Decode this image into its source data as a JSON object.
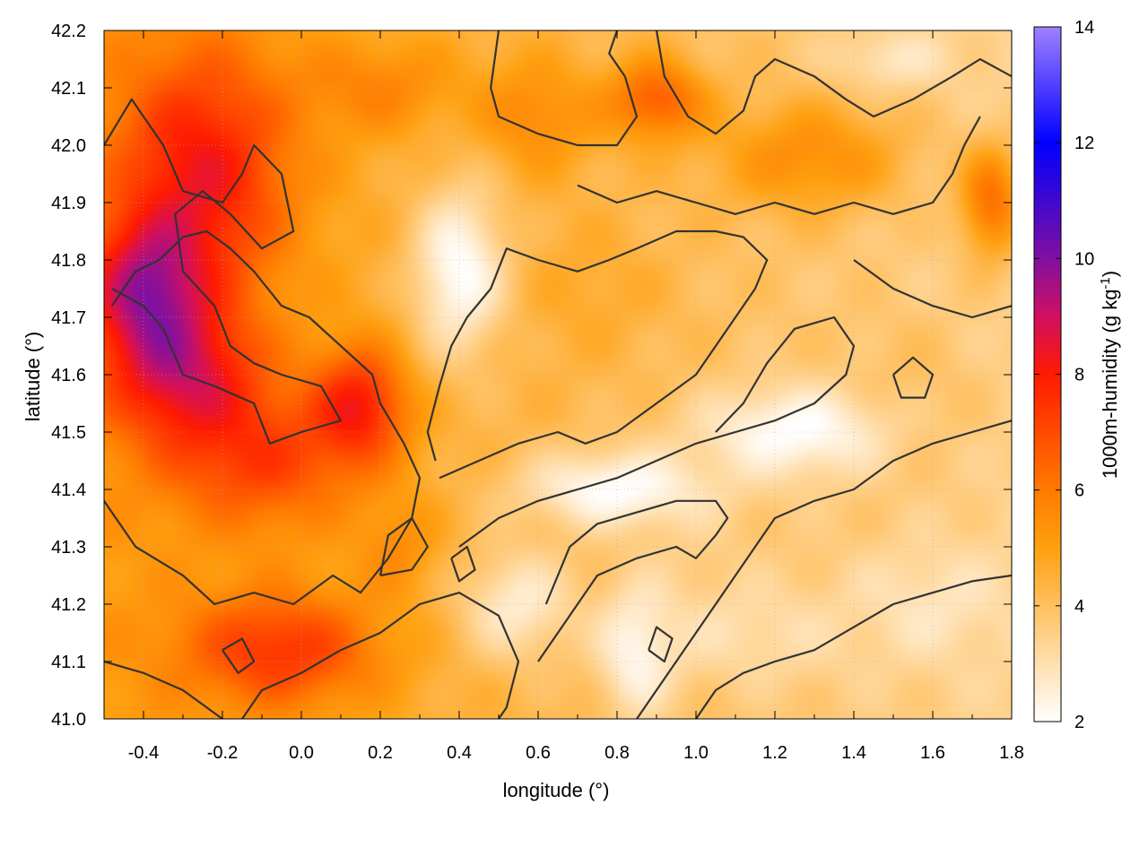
{
  "chart_data": {
    "type": "heatmap",
    "xlabel": "longitude (°)",
    "ylabel": "latitude (°)",
    "colorbar_label_main": "1000m-humidity (g kg",
    "colorbar_label_sup": "-1",
    "colorbar_label_end": ")",
    "xlim": [
      -0.5,
      1.8
    ],
    "ylim": [
      41.0,
      42.2
    ],
    "clim": [
      2,
      14
    ],
    "xticks": [
      -0.4,
      -0.2,
      0.0,
      0.2,
      0.4,
      0.6,
      0.8,
      1.0,
      1.2,
      1.4,
      1.6,
      1.8
    ],
    "xtick_labels": [
      "-0.4",
      "-0.2",
      "0.0",
      "0.2",
      "0.4",
      "0.6",
      "0.8",
      "1.0",
      "1.2",
      "1.4",
      "1.6",
      "1.8"
    ],
    "yticks": [
      41.0,
      41.1,
      41.2,
      41.3,
      41.4,
      41.5,
      41.6,
      41.7,
      41.8,
      41.9,
      42.0,
      42.1,
      42.2
    ],
    "ytick_labels": [
      "41.0",
      "41.1",
      "41.2",
      "41.3",
      "41.4",
      "41.5",
      "41.6",
      "41.7",
      "41.8",
      "41.9",
      "42.0",
      "42.1",
      "42.2"
    ],
    "cticks": [
      2,
      4,
      6,
      8,
      10,
      12,
      14
    ],
    "ctick_labels": [
      "2",
      "4",
      "6",
      "8",
      "10",
      "12",
      "14"
    ],
    "colormap": [
      {
        "value": 2,
        "color": "#ffffff"
      },
      {
        "value": 4,
        "color": "#ffc060"
      },
      {
        "value": 5,
        "color": "#ffa010"
      },
      {
        "value": 6,
        "color": "#ff7a00"
      },
      {
        "value": 8,
        "color": "#ff1a00"
      },
      {
        "value": 9,
        "color": "#d01060"
      },
      {
        "value": 10,
        "color": "#8010a0"
      },
      {
        "value": 12,
        "color": "#0000ff"
      },
      {
        "value": 14,
        "color": "#a080ff"
      }
    ],
    "grid": true,
    "contour_color": "#333333",
    "humidity_blobs": [
      {
        "lon": -0.25,
        "lat": 41.95,
        "value": 7.6,
        "sx": 0.22,
        "sy": 0.22
      },
      {
        "lon": -0.4,
        "lat": 41.75,
        "value": 7.8,
        "sx": 0.15,
        "sy": 0.12
      },
      {
        "lon": -0.3,
        "lat": 41.6,
        "value": 7.6,
        "sx": 0.2,
        "sy": 0.12
      },
      {
        "lon": 0.15,
        "lat": 41.55,
        "value": 7.4,
        "sx": 0.12,
        "sy": 0.1
      },
      {
        "lon": -0.1,
        "lat": 41.45,
        "value": 6.6,
        "sx": 0.25,
        "sy": 0.12
      },
      {
        "lon": -0.05,
        "lat": 41.12,
        "value": 7.0,
        "sx": 0.25,
        "sy": 0.1
      },
      {
        "lon": 0.9,
        "lat": 42.08,
        "value": 6.8,
        "sx": 0.12,
        "sy": 0.07
      },
      {
        "lon": 1.3,
        "lat": 41.98,
        "value": 6.0,
        "sx": 0.25,
        "sy": 0.1
      },
      {
        "lon": 1.75,
        "lat": 41.9,
        "value": 7.0,
        "sx": 0.08,
        "sy": 0.1
      },
      {
        "lon": 0.6,
        "lat": 42.05,
        "value": 5.6,
        "sx": 0.15,
        "sy": 0.1
      },
      {
        "lon": 0.75,
        "lat": 41.75,
        "value": 4.8,
        "sx": 0.2,
        "sy": 0.12
      },
      {
        "lon": 1.55,
        "lat": 41.55,
        "value": 4.8,
        "sx": 0.2,
        "sy": 0.15
      },
      {
        "lon": 1.0,
        "lat": 41.3,
        "value": 4.0,
        "sx": 0.15,
        "sy": 0.08
      },
      {
        "lon": 0.25,
        "lat": 41.3,
        "value": 5.2,
        "sx": 0.1,
        "sy": 0.08
      },
      {
        "lon": 1.1,
        "lat": 41.15,
        "value": 3.4,
        "sx": 0.3,
        "sy": 0.1
      },
      {
        "lon": 0.2,
        "lat": 42.1,
        "value": 5.4,
        "sx": 0.2,
        "sy": 0.08
      }
    ],
    "dry_blobs": [
      {
        "lon": 0.4,
        "lat": 41.78,
        "value": 2.0,
        "sx": 0.12,
        "sy": 0.15
      },
      {
        "lon": 1.25,
        "lat": 41.5,
        "value": 2.0,
        "sx": 0.25,
        "sy": 0.08
      },
      {
        "lon": 0.8,
        "lat": 41.4,
        "value": 2.0,
        "sx": 0.25,
        "sy": 0.07
      },
      {
        "lon": 0.85,
        "lat": 41.12,
        "value": 2.2,
        "sx": 0.1,
        "sy": 0.12
      },
      {
        "lon": 0.55,
        "lat": 41.2,
        "value": 2.6,
        "sx": 0.15,
        "sy": 0.1
      },
      {
        "lon": 1.6,
        "lat": 41.2,
        "value": 2.8,
        "sx": 0.2,
        "sy": 0.1
      },
      {
        "lon": 1.5,
        "lat": 42.15,
        "value": 2.8,
        "sx": 0.15,
        "sy": 0.05
      }
    ],
    "contours": [
      [
        [
          -0.5,
          42.0
        ],
        [
          -0.43,
          42.08
        ],
        [
          -0.35,
          42.0
        ],
        [
          -0.3,
          41.92
        ],
        [
          -0.2,
          41.9
        ],
        [
          -0.15,
          41.95
        ],
        [
          -0.12,
          42.0
        ],
        [
          -0.05,
          41.95
        ],
        [
          -0.02,
          41.85
        ],
        [
          -0.1,
          41.82
        ],
        [
          -0.18,
          41.88
        ],
        [
          -0.25,
          41.92
        ],
        [
          -0.32,
          41.88
        ],
        [
          -0.3,
          41.78
        ],
        [
          -0.22,
          41.72
        ],
        [
          -0.18,
          41.65
        ],
        [
          -0.12,
          41.62
        ],
        [
          -0.05,
          41.6
        ],
        [
          0.05,
          41.58
        ],
        [
          0.1,
          41.52
        ],
        [
          0.0,
          41.5
        ],
        [
          -0.08,
          41.48
        ],
        [
          -0.12,
          41.55
        ],
        [
          -0.22,
          41.58
        ],
        [
          -0.3,
          41.6
        ],
        [
          -0.35,
          41.68
        ],
        [
          -0.4,
          41.72
        ],
        [
          -0.48,
          41.75
        ]
      ],
      [
        [
          -0.5,
          41.38
        ],
        [
          -0.42,
          41.3
        ],
        [
          -0.3,
          41.25
        ],
        [
          -0.22,
          41.2
        ],
        [
          -0.12,
          41.22
        ],
        [
          -0.02,
          41.2
        ],
        [
          0.08,
          41.25
        ],
        [
          0.15,
          41.22
        ],
        [
          0.22,
          41.28
        ],
        [
          0.28,
          41.35
        ],
        [
          0.3,
          41.42
        ],
        [
          0.26,
          41.48
        ],
        [
          0.2,
          41.55
        ],
        [
          0.18,
          41.6
        ],
        [
          0.1,
          41.65
        ],
        [
          0.02,
          41.7
        ],
        [
          -0.05,
          41.72
        ],
        [
          -0.12,
          41.78
        ],
        [
          -0.18,
          41.82
        ],
        [
          -0.24,
          41.85
        ],
        [
          -0.3,
          41.84
        ],
        [
          -0.36,
          41.8
        ],
        [
          -0.42,
          41.78
        ],
        [
          -0.48,
          41.72
        ]
      ],
      [
        [
          -0.5,
          41.1
        ],
        [
          -0.4,
          41.08
        ],
        [
          -0.3,
          41.05
        ],
        [
          -0.2,
          41.0
        ]
      ],
      [
        [
          -0.15,
          41.0
        ],
        [
          -0.1,
          41.05
        ],
        [
          0.0,
          41.08
        ],
        [
          0.1,
          41.12
        ],
        [
          0.2,
          41.15
        ],
        [
          0.3,
          41.2
        ],
        [
          0.4,
          41.22
        ],
        [
          0.5,
          41.18
        ],
        [
          0.55,
          41.1
        ],
        [
          0.52,
          41.02
        ],
        [
          0.5,
          41.0
        ]
      ],
      [
        [
          0.35,
          41.42
        ],
        [
          0.45,
          41.45
        ],
        [
          0.55,
          41.48
        ],
        [
          0.65,
          41.5
        ],
        [
          0.72,
          41.48
        ],
        [
          0.8,
          41.5
        ],
        [
          0.9,
          41.55
        ],
        [
          1.0,
          41.6
        ],
        [
          1.05,
          41.65
        ],
        [
          1.1,
          41.7
        ],
        [
          1.15,
          41.75
        ],
        [
          1.18,
          41.8
        ],
        [
          1.12,
          41.84
        ],
        [
          1.05,
          41.85
        ],
        [
          0.95,
          41.85
        ],
        [
          0.85,
          41.82
        ],
        [
          0.78,
          41.8
        ],
        [
          0.7,
          41.78
        ],
        [
          0.6,
          41.8
        ],
        [
          0.52,
          41.82
        ],
        [
          0.48,
          41.75
        ],
        [
          0.42,
          41.7
        ],
        [
          0.38,
          41.65
        ],
        [
          0.35,
          41.58
        ],
        [
          0.32,
          41.5
        ],
        [
          0.34,
          41.45
        ]
      ],
      [
        [
          0.4,
          41.3
        ],
        [
          0.5,
          41.35
        ],
        [
          0.6,
          41.38
        ],
        [
          0.7,
          41.4
        ],
        [
          0.8,
          41.42
        ],
        [
          0.9,
          41.45
        ],
        [
          1.0,
          41.48
        ],
        [
          1.1,
          41.5
        ],
        [
          1.2,
          41.52
        ],
        [
          1.3,
          41.55
        ],
        [
          1.38,
          41.6
        ],
        [
          1.4,
          41.65
        ],
        [
          1.35,
          41.7
        ],
        [
          1.25,
          41.68
        ],
        [
          1.18,
          41.62
        ],
        [
          1.12,
          41.55
        ],
        [
          1.05,
          41.5
        ]
      ],
      [
        [
          0.6,
          41.1
        ],
        [
          0.65,
          41.15
        ],
        [
          0.7,
          41.2
        ],
        [
          0.75,
          41.25
        ],
        [
          0.85,
          41.28
        ],
        [
          0.95,
          41.3
        ],
        [
          1.0,
          41.28
        ],
        [
          1.05,
          41.32
        ],
        [
          1.08,
          41.35
        ],
        [
          1.05,
          41.38
        ],
        [
          0.95,
          41.38
        ],
        [
          0.85,
          41.36
        ],
        [
          0.75,
          41.34
        ],
        [
          0.68,
          41.3
        ],
        [
          0.65,
          41.25
        ],
        [
          0.62,
          41.2
        ]
      ],
      [
        [
          0.85,
          41.0
        ],
        [
          0.9,
          41.05
        ],
        [
          0.95,
          41.1
        ],
        [
          1.0,
          41.15
        ],
        [
          1.05,
          41.2
        ],
        [
          1.1,
          41.25
        ],
        [
          1.15,
          41.3
        ],
        [
          1.2,
          41.35
        ],
        [
          1.3,
          41.38
        ],
        [
          1.4,
          41.4
        ],
        [
          1.5,
          41.45
        ],
        [
          1.6,
          41.48
        ],
        [
          1.7,
          41.5
        ],
        [
          1.8,
          41.52
        ]
      ],
      [
        [
          1.0,
          41.0
        ],
        [
          1.05,
          41.05
        ],
        [
          1.12,
          41.08
        ],
        [
          1.2,
          41.1
        ],
        [
          1.3,
          41.12
        ],
        [
          1.4,
          41.16
        ],
        [
          1.5,
          41.2
        ],
        [
          1.6,
          41.22
        ],
        [
          1.7,
          41.24
        ],
        [
          1.8,
          41.25
        ]
      ],
      [
        [
          0.5,
          42.2
        ],
        [
          0.48,
          42.1
        ],
        [
          0.5,
          42.05
        ],
        [
          0.6,
          42.02
        ],
        [
          0.7,
          42.0
        ],
        [
          0.8,
          42.0
        ],
        [
          0.85,
          42.05
        ],
        [
          0.82,
          42.12
        ],
        [
          0.78,
          42.16
        ],
        [
          0.8,
          42.2
        ]
      ],
      [
        [
          0.9,
          42.2
        ],
        [
          0.92,
          42.12
        ],
        [
          0.98,
          42.05
        ],
        [
          1.05,
          42.02
        ],
        [
          1.12,
          42.06
        ],
        [
          1.15,
          42.12
        ],
        [
          1.2,
          42.15
        ],
        [
          1.3,
          42.12
        ],
        [
          1.38,
          42.08
        ],
        [
          1.45,
          42.05
        ],
        [
          1.55,
          42.08
        ],
        [
          1.65,
          42.12
        ],
        [
          1.72,
          42.15
        ],
        [
          1.8,
          42.12
        ]
      ],
      [
        [
          0.7,
          41.93
        ],
        [
          0.8,
          41.9
        ],
        [
          0.9,
          41.92
        ],
        [
          1.0,
          41.9
        ],
        [
          1.1,
          41.88
        ],
        [
          1.2,
          41.9
        ],
        [
          1.3,
          41.88
        ],
        [
          1.4,
          41.9
        ],
        [
          1.5,
          41.88
        ],
        [
          1.6,
          41.9
        ],
        [
          1.65,
          41.95
        ],
        [
          1.68,
          42.0
        ],
        [
          1.72,
          42.05
        ]
      ],
      [
        [
          1.4,
          41.8
        ],
        [
          1.5,
          41.75
        ],
        [
          1.6,
          41.72
        ],
        [
          1.7,
          41.7
        ],
        [
          1.8,
          41.72
        ]
      ],
      [
        [
          0.2,
          41.25
        ],
        [
          0.22,
          41.32
        ],
        [
          0.28,
          41.35
        ],
        [
          0.32,
          41.3
        ],
        [
          0.28,
          41.26
        ],
        [
          0.2,
          41.25
        ]
      ],
      [
        [
          0.38,
          41.28
        ],
        [
          0.42,
          41.3
        ],
        [
          0.44,
          41.26
        ],
        [
          0.4,
          41.24
        ],
        [
          0.38,
          41.28
        ]
      ],
      [
        [
          0.88,
          41.12
        ],
        [
          0.9,
          41.16
        ],
        [
          0.94,
          41.14
        ],
        [
          0.92,
          41.1
        ],
        [
          0.88,
          41.12
        ]
      ],
      [
        [
          -0.2,
          41.12
        ],
        [
          -0.15,
          41.14
        ],
        [
          -0.12,
          41.1
        ],
        [
          -0.16,
          41.08
        ],
        [
          -0.2,
          41.12
        ]
      ],
      [
        [
          1.5,
          41.6
        ],
        [
          1.55,
          41.63
        ],
        [
          1.6,
          41.6
        ],
        [
          1.58,
          41.56
        ],
        [
          1.52,
          41.56
        ],
        [
          1.5,
          41.6
        ]
      ]
    ]
  }
}
